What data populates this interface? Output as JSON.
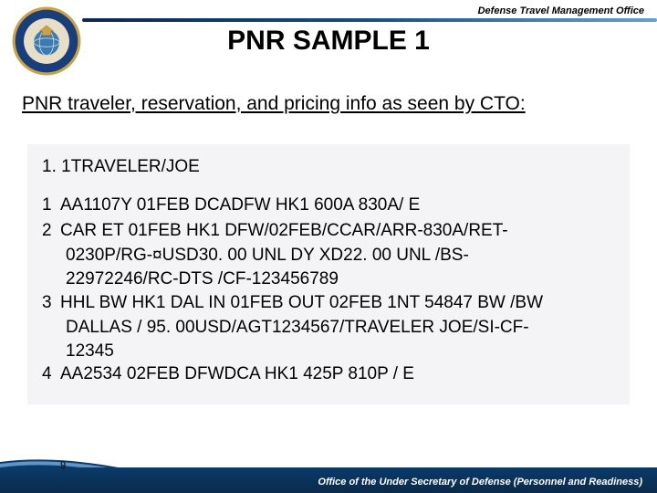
{
  "header": {
    "office_label": "Defense Travel Management Office",
    "title": "PNR SAMPLE 1",
    "seal": {
      "outer_ring_color": "#c9a34a",
      "ring_color": "#1a3e7a",
      "inner_color": "#e8dfc8",
      "globe_color": "#3a7ab8"
    },
    "bar_gradient": [
      "#0a2a4a",
      "#1a4d80",
      "#6aa0d0"
    ]
  },
  "subtitle": "PNR traveler, reservation, and pricing info as seen by CTO:",
  "content": {
    "box_bg": "#f4f4f7",
    "traveler_line": "1. 1TRAVELER/JOE",
    "items": [
      {
        "n": "1",
        "lines": [
          "AA1107Y 01FEB DCADFW HK1 600A  830A/ E"
        ]
      },
      {
        "n": "2",
        "lines": [
          "CAR ET 01FEB HK1  DFW/02FEB/CCAR/ARR-830A/RET-",
          "0230P/RG-¤USD30. 00 UNL DY XD22. 00 UNL /BS-",
          "22972246/RC-DTS /CF-123456789"
        ]
      },
      {
        "n": "3",
        "lines": [
          "HHL BW HK1 DAL IN 01FEB OUT 02FEB 1NT 54847 BW /BW",
          "DALLAS / 95. 00USD/AGT1234567/TRAVELER JOE/SI-CF-",
          "12345"
        ]
      },
      {
        "n": "4",
        "lines": [
          "AA2534 02FEB DFWDCA HK1 425P  810P / E"
        ]
      }
    ]
  },
  "footer": {
    "page_number": "9",
    "text": "Office of the Under Secretary of Defense (Personnel and Readiness)",
    "bg_gradient": [
      "#0a3a6a",
      "#0a2a4a"
    ],
    "swoosh_color": "#6aa0d0"
  }
}
